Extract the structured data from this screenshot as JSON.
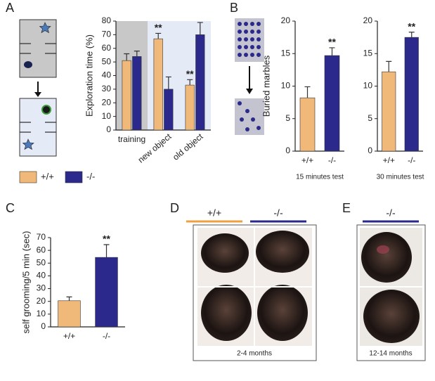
{
  "panel_labels": [
    "A",
    "B",
    "C",
    "D",
    "E"
  ],
  "chart_data": [
    {
      "type": "bar",
      "ylabel": "Exploration time (%)",
      "categories": [
        "training",
        "new object",
        "old object"
      ],
      "series": [
        {
          "name": "+/+",
          "color": "#f0b97a",
          "values": [
            51,
            67,
            33
          ],
          "errors": [
            5,
            4,
            4
          ]
        },
        {
          "name": "-/-",
          "color": "#2b2a8c",
          "values": [
            54,
            30,
            70
          ],
          "errors": [
            4,
            9,
            9
          ]
        }
      ],
      "ylim": [
        0,
        80
      ],
      "yticks": [
        0,
        10,
        20,
        30,
        40,
        50,
        60,
        70,
        80
      ],
      "annotations": [
        {
          "text": "**",
          "category": "new object",
          "series": "+/+"
        },
        {
          "text": "**",
          "category": "old object",
          "series": "+/+"
        }
      ]
    },
    {
      "type": "bar",
      "ylabel": "Buried marbles",
      "xlabel": "15 minutes test",
      "categories": [
        "+/+",
        "-/-"
      ],
      "values": [
        8.2,
        14.7
      ],
      "errors": [
        1.7,
        1.2
      ],
      "colors": [
        "#f0b97a",
        "#2b2a8c"
      ],
      "ylim": [
        0,
        20
      ],
      "yticks": [
        0,
        5,
        10,
        15,
        20
      ],
      "annotations": [
        {
          "text": "**",
          "category": "-/-"
        }
      ]
    },
    {
      "type": "bar",
      "xlabel": "30 minutes test",
      "categories": [
        "+/+",
        "-/-"
      ],
      "values": [
        12.2,
        17.5
      ],
      "errors": [
        1.6,
        0.8
      ],
      "colors": [
        "#f0b97a",
        "#2b2a8c"
      ],
      "ylim": [
        0,
        20
      ],
      "yticks": [
        0,
        5,
        10,
        15,
        20
      ],
      "annotations": [
        {
          "text": "**",
          "category": "-/-"
        }
      ]
    },
    {
      "type": "bar",
      "ylabel": "self grooming/5 min (sec)",
      "categories": [
        "+/+",
        "-/-"
      ],
      "values": [
        20.5,
        54.5
      ],
      "errors": [
        3,
        10
      ],
      "colors": [
        "#f0b97a",
        "#2b2a8c"
      ],
      "ylim": [
        0,
        70
      ],
      "yticks": [
        0,
        10,
        20,
        30,
        40,
        50,
        60,
        70
      ],
      "annotations": [
        {
          "text": "**",
          "category": "-/-"
        }
      ]
    }
  ],
  "photos": [
    {
      "groups": [
        "+/+",
        "-/-"
      ],
      "colors": [
        "#f0a040",
        "#2b2a8c"
      ],
      "caption": "2-4 months"
    },
    {
      "groups": [
        "-/-"
      ],
      "colors": [
        "#2b2a8c"
      ],
      "caption": "12-14 months"
    }
  ]
}
